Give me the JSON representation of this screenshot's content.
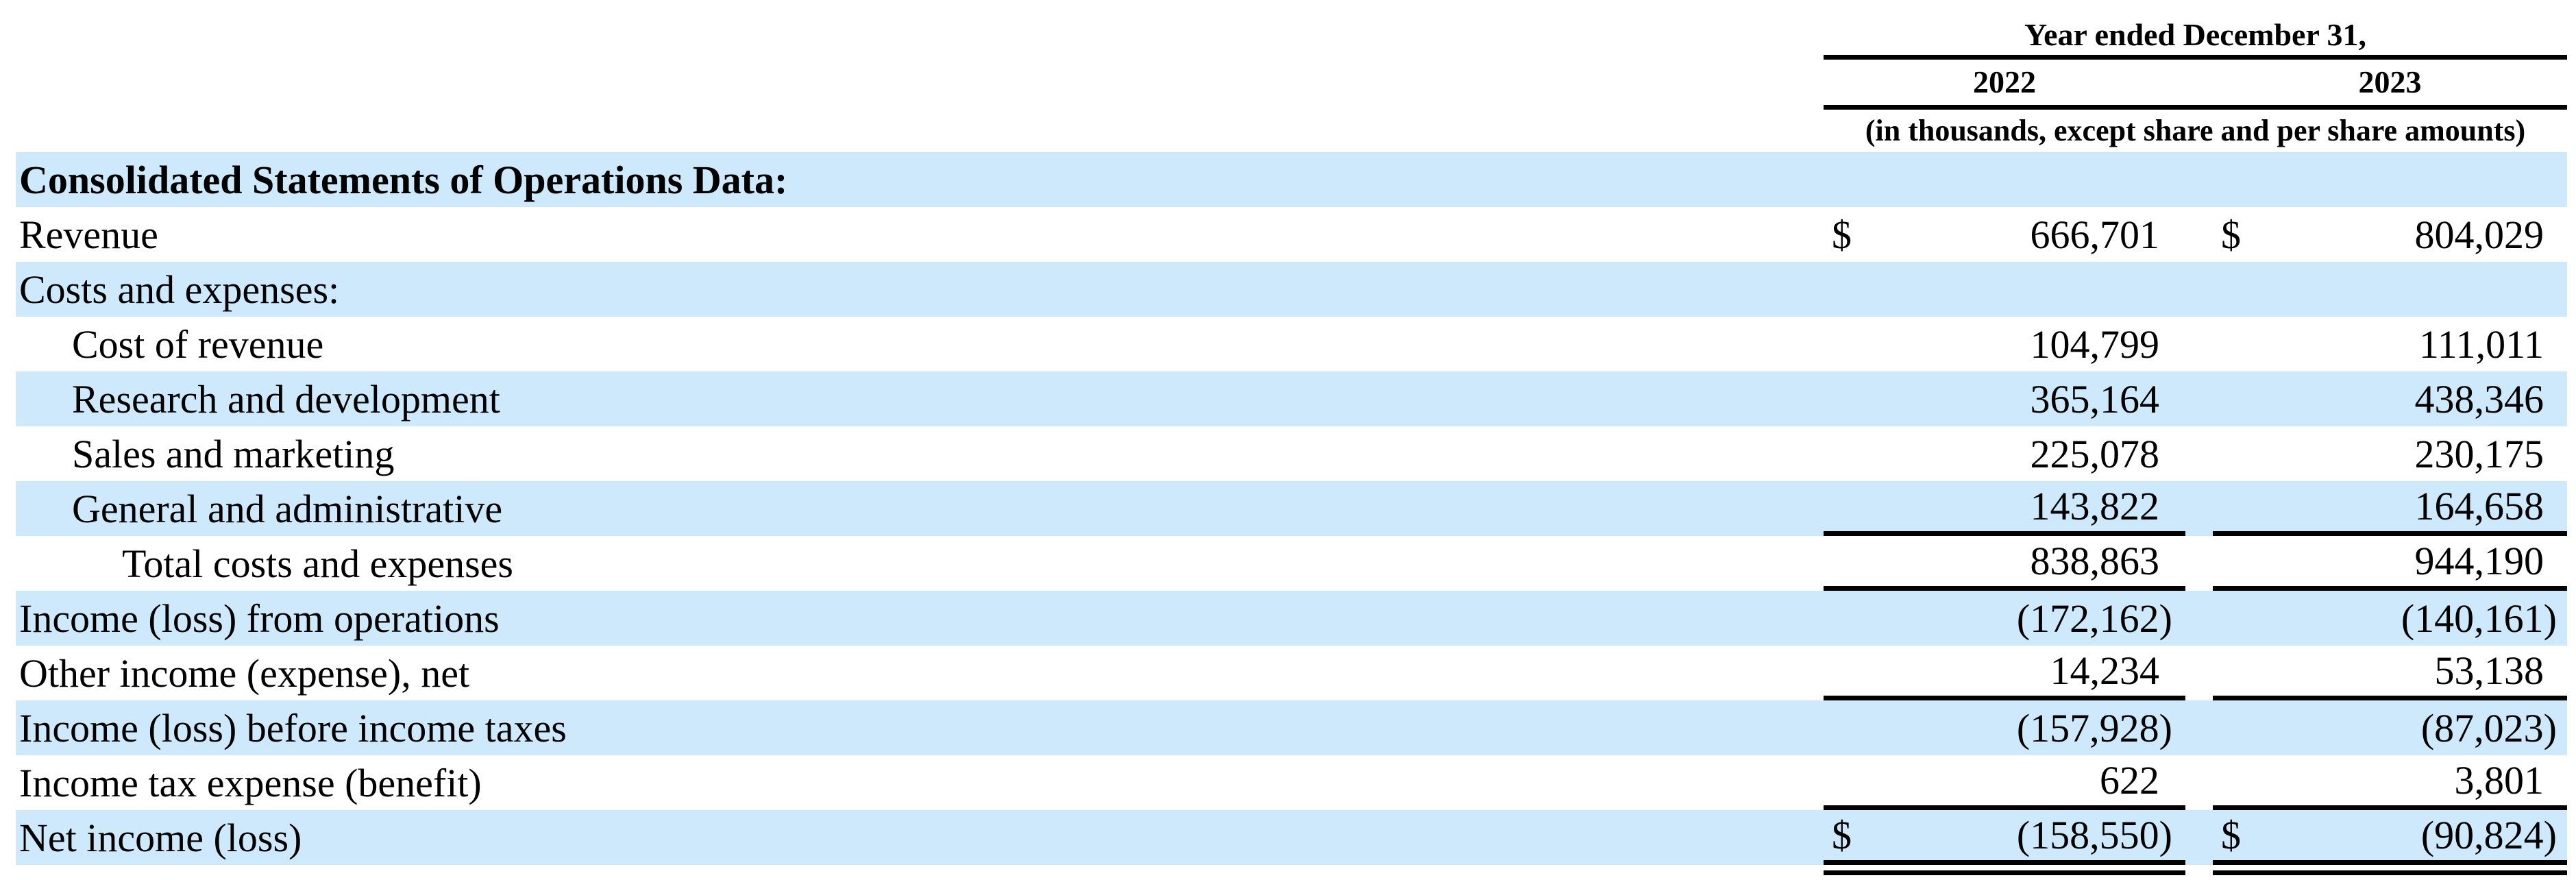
{
  "colors": {
    "row_stripe_blue": "#cde9fb",
    "rule_black": "#000000",
    "text": "#000000",
    "background": "#ffffff"
  },
  "table": {
    "header": {
      "period_label": "Year ended December 31,",
      "columns": [
        "2022",
        "2023"
      ],
      "units_note": "(in thousands, except share and per share amounts)"
    },
    "rows": [
      {
        "label": "Consolidated Statements of Operations Data:",
        "v2022": "",
        "v2023": ""
      },
      {
        "label": "Revenue",
        "currency": "$",
        "v2022": "666,701",
        "v2023": "804,029"
      },
      {
        "label": "Costs and expenses:",
        "v2022": "",
        "v2023": ""
      },
      {
        "label": "Cost of revenue",
        "v2022": "104,799",
        "v2023": "111,011"
      },
      {
        "label": "Research and development",
        "v2022": "365,164",
        "v2023": "438,346"
      },
      {
        "label": "Sales and marketing",
        "v2022": "225,078",
        "v2023": "230,175"
      },
      {
        "label": "General and administrative",
        "v2022": "143,822",
        "v2023": "164,658"
      },
      {
        "label": "Total costs and expenses",
        "v2022": "838,863",
        "v2023": "944,190"
      },
      {
        "label": "Income (loss) from operations",
        "v2022": "(172,162)",
        "v2023": "(140,161)"
      },
      {
        "label": "Other income (expense), net",
        "v2022": "14,234",
        "v2023": "53,138"
      },
      {
        "label": "Income (loss) before income taxes",
        "v2022": "(157,928)",
        "v2023": "(87,023)"
      },
      {
        "label": "Income tax expense (benefit)",
        "v2022": "622",
        "v2023": "3,801"
      },
      {
        "label": "Net income (loss)",
        "currency": "$",
        "v2022": "(158,550)",
        "v2023": "(90,824)"
      }
    ]
  }
}
